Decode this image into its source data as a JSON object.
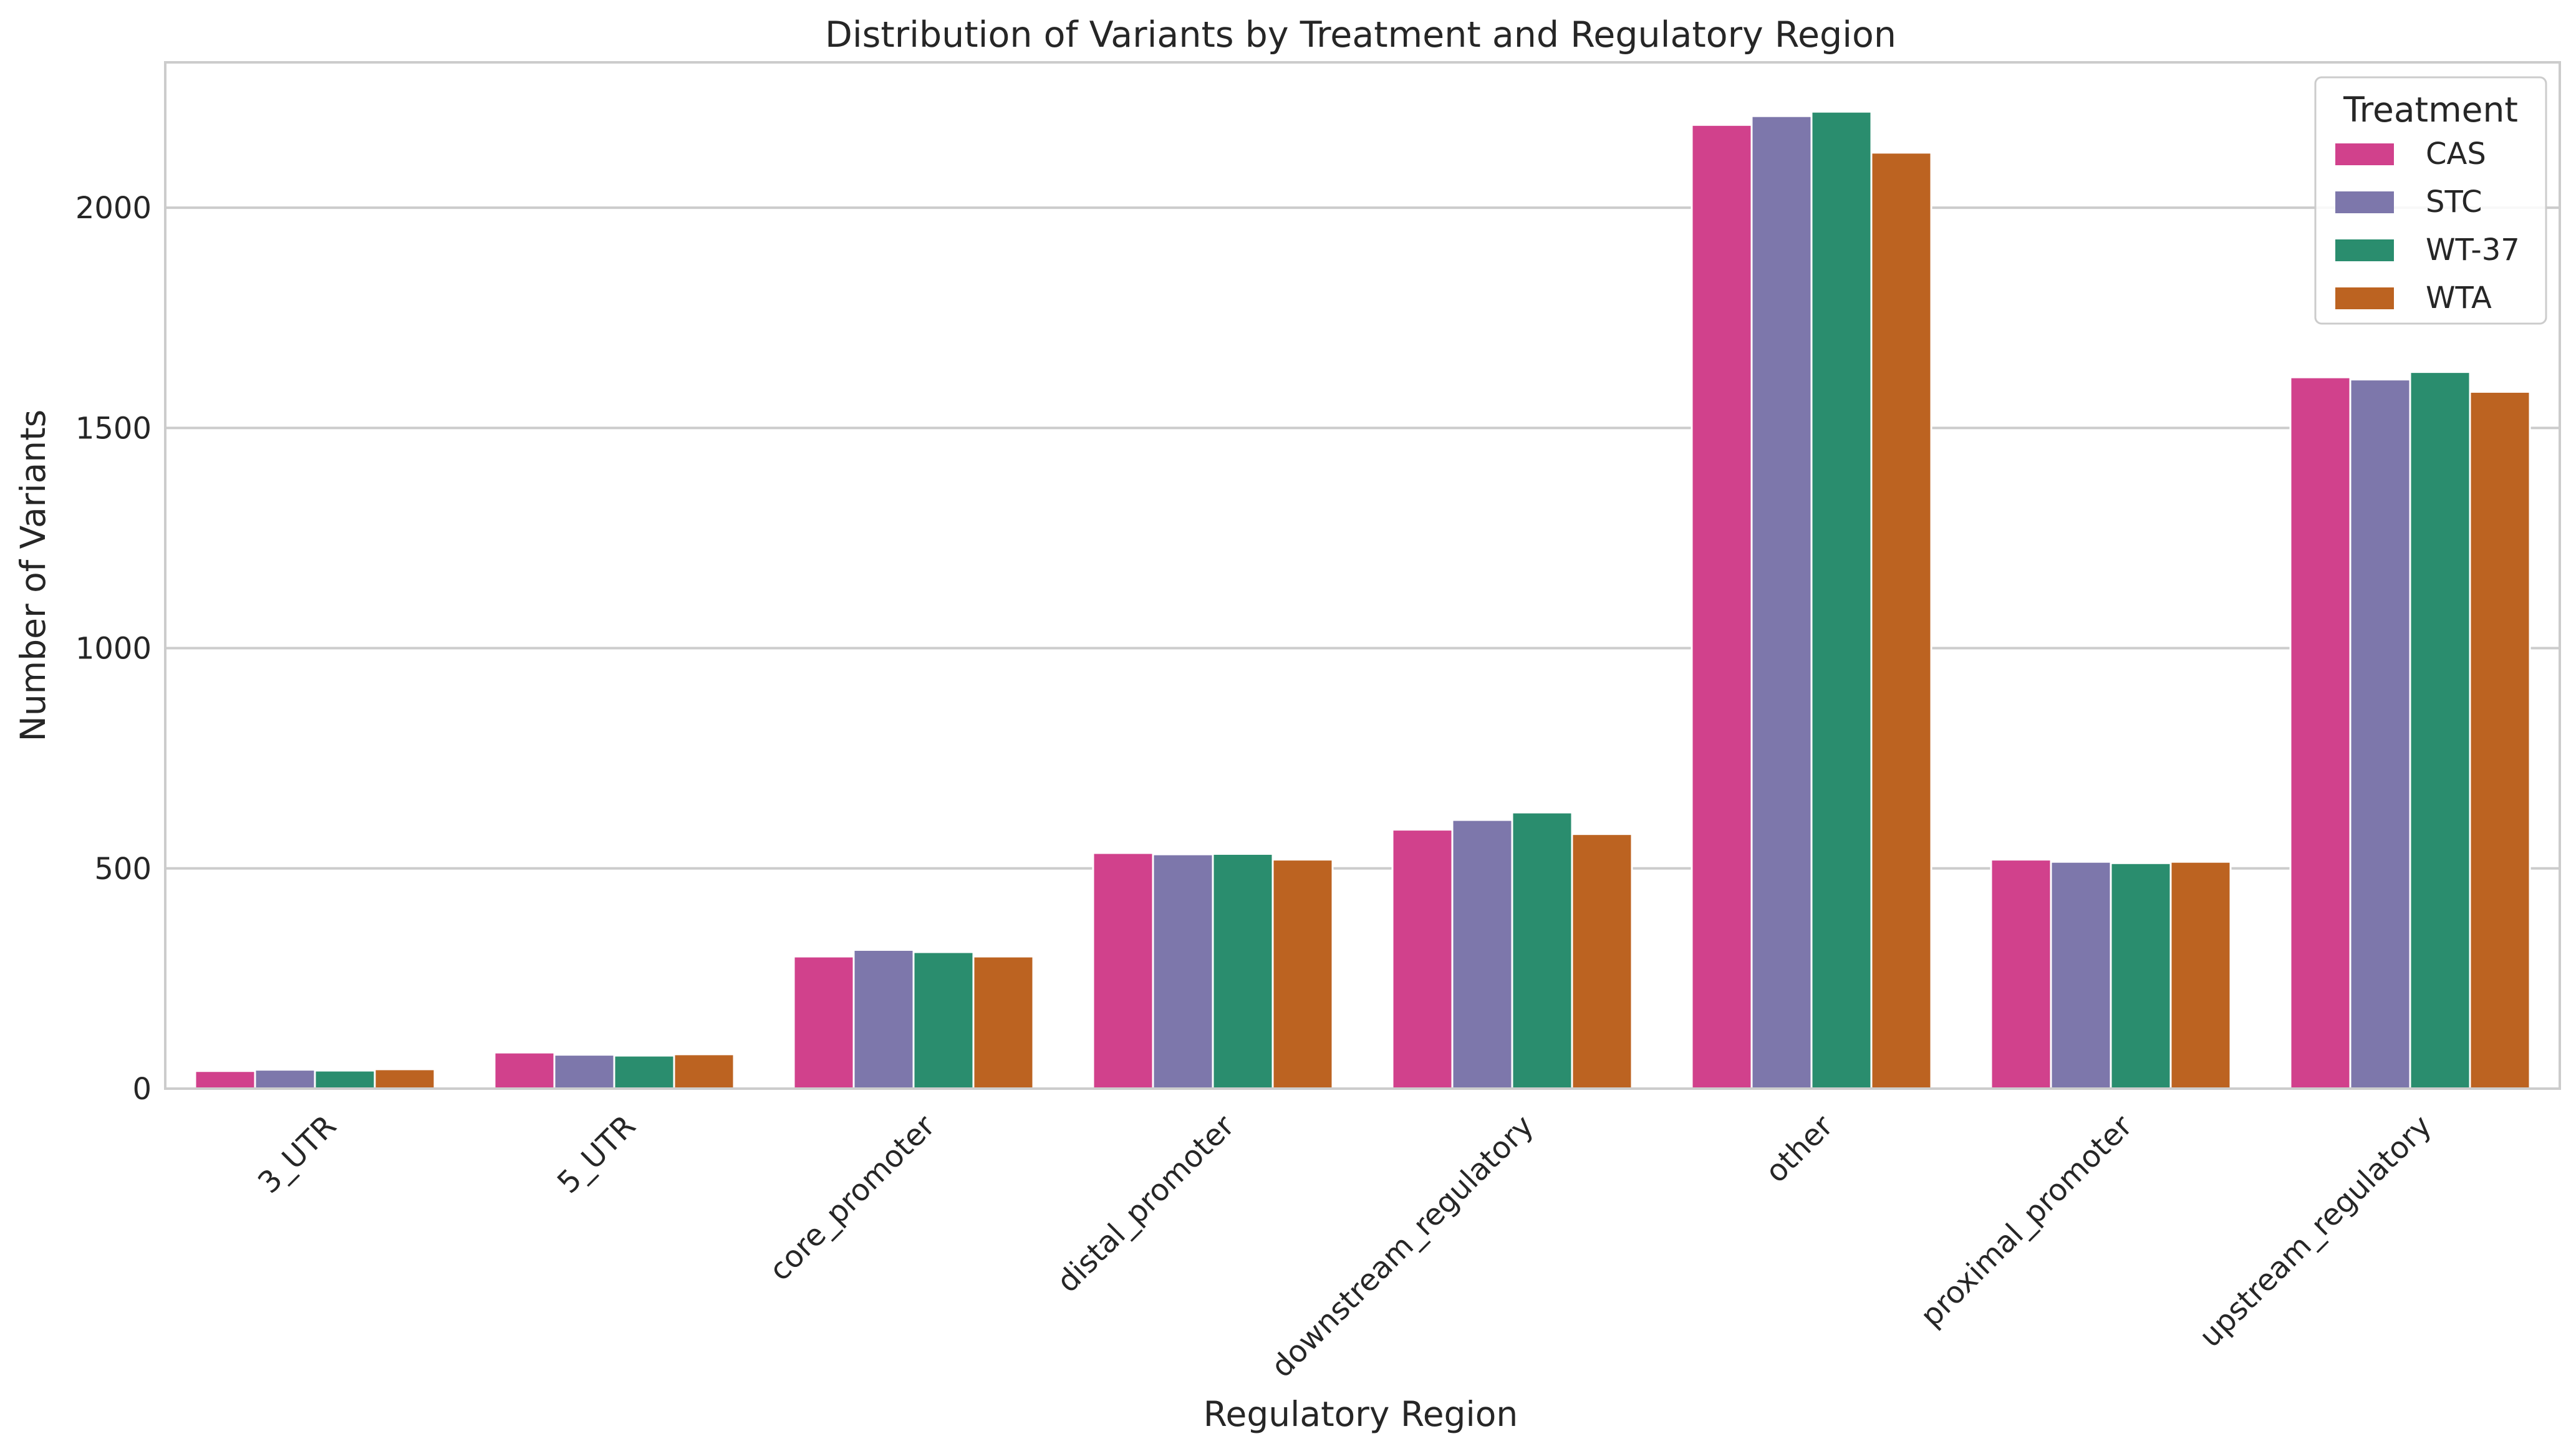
{
  "chart_data": {
    "type": "bar",
    "title": "Distribution of Variants by Treatment and Regulatory Region",
    "xlabel": "Regulatory Region",
    "ylabel": "Number of Variants",
    "ylim": [
      0,
      2330
    ],
    "yticks": [
      0,
      500,
      1000,
      1500,
      2000
    ],
    "grid": "horizontal",
    "legend_title": "Treatment",
    "legend_position": "top-right",
    "categories": [
      "3_UTR",
      "5_UTR",
      "core_promoter",
      "distal_promoter",
      "downstream_regulatory",
      "other",
      "proximal_promoter",
      "upstream_regulatory"
    ],
    "series": [
      {
        "name": "CAS",
        "color": "#d1418c",
        "values": [
          40,
          82,
          300,
          535,
          588,
          2188,
          520,
          1615
        ]
      },
      {
        "name": "STC",
        "color": "#7d77ab",
        "values": [
          43,
          77,
          315,
          532,
          610,
          2208,
          515,
          1610
        ]
      },
      {
        "name": "WT-37",
        "color": "#2a8d6e",
        "values": [
          41,
          75,
          310,
          533,
          627,
          2218,
          512,
          1627
        ]
      },
      {
        "name": "WTA",
        "color": "#bc6321",
        "values": [
          44,
          78,
          300,
          520,
          578,
          2125,
          515,
          1582
        ]
      }
    ]
  }
}
